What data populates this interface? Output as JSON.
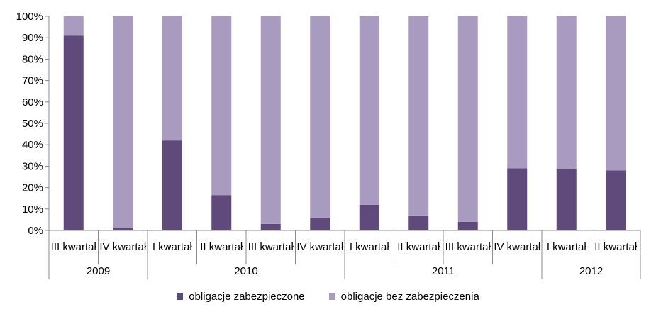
{
  "chart_data": {
    "type": "bar",
    "stacked": true,
    "y_axis": {
      "ylim": [
        0,
        100
      ],
      "tick_labels": [
        "0%",
        "10%",
        "20%",
        "30%",
        "40%",
        "50%",
        "60%",
        "70%",
        "80%",
        "90%",
        "100%"
      ]
    },
    "categories": [
      "III kwartał",
      "IV kwartał",
      "I kwartał",
      "II kwartał",
      "III kwartał",
      "IV kwartał",
      "I kwartał",
      "II kwartał",
      "III kwartał",
      "IV kwartał",
      "I kwartał",
      "II kwartał"
    ],
    "groups": [
      {
        "label": "2009",
        "count": 2
      },
      {
        "label": "2010",
        "count": 4
      },
      {
        "label": "2011",
        "count": 4
      },
      {
        "label": "2012",
        "count": 2
      }
    ],
    "series": [
      {
        "name": "obligacje zabezpieczone",
        "color": "#604a7b",
        "values": [
          91,
          1,
          42,
          16.5,
          3,
          6,
          12,
          7,
          4,
          29,
          28.5,
          28
        ]
      },
      {
        "name": "obligacje bez zabezpieczenia",
        "color": "#a99bc0",
        "values": [
          9,
          99,
          58,
          83.5,
          97,
          94,
          88,
          93,
          96,
          71,
          71.5,
          72
        ]
      }
    ],
    "legend_position": "bottom",
    "grid": false
  }
}
